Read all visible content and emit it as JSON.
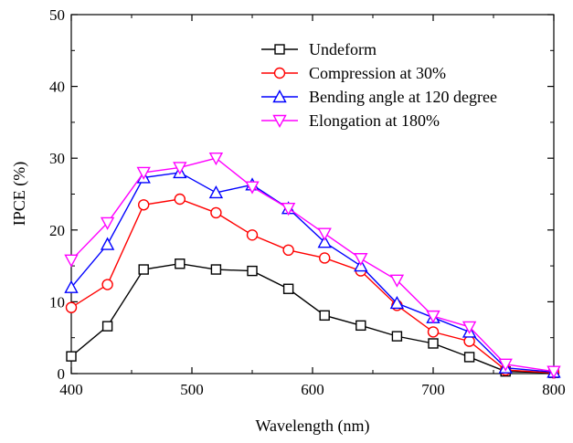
{
  "chart_data": {
    "type": "line",
    "xlabel": "Wavelength (nm)",
    "ylabel": "IPCE (%)",
    "xlim": [
      400,
      800
    ],
    "ylim": [
      0,
      50
    ],
    "xticks": [
      400,
      500,
      600,
      700,
      800
    ],
    "yticks": [
      0,
      10,
      20,
      30,
      40,
      50
    ],
    "grid": false,
    "legend_position": "top-right",
    "x": [
      400,
      430,
      460,
      490,
      520,
      550,
      580,
      610,
      640,
      670,
      700,
      730,
      760,
      800
    ],
    "series": [
      {
        "name": "Undeform",
        "color": "#000000",
        "marker": "square",
        "values": [
          2.4,
          6.6,
          14.5,
          15.3,
          14.5,
          14.3,
          11.8,
          8.1,
          6.7,
          5.2,
          4.2,
          2.3,
          0.3,
          0.1
        ]
      },
      {
        "name": "Compression at 30%",
        "color": "#ff0000",
        "marker": "circle",
        "values": [
          9.2,
          12.4,
          23.5,
          24.3,
          22.4,
          19.3,
          17.2,
          16.1,
          14.3,
          9.5,
          5.8,
          4.5,
          0.5,
          0.1
        ]
      },
      {
        "name": "Bending angle at 120 degree",
        "color": "#0000ff",
        "marker": "triangle-up",
        "values": [
          12.0,
          18.0,
          27.3,
          28.0,
          25.2,
          26.3,
          23.0,
          18.3,
          15.0,
          9.8,
          7.8,
          5.8,
          0.8,
          0.2
        ]
      },
      {
        "name": "Elongation at 180%",
        "color": "#ff00ff",
        "marker": "triangle-down",
        "values": [
          15.8,
          21.0,
          28.0,
          28.7,
          30.0,
          26.0,
          23.0,
          19.5,
          16.0,
          13.0,
          8.0,
          6.5,
          1.3,
          0.3
        ]
      }
    ]
  }
}
